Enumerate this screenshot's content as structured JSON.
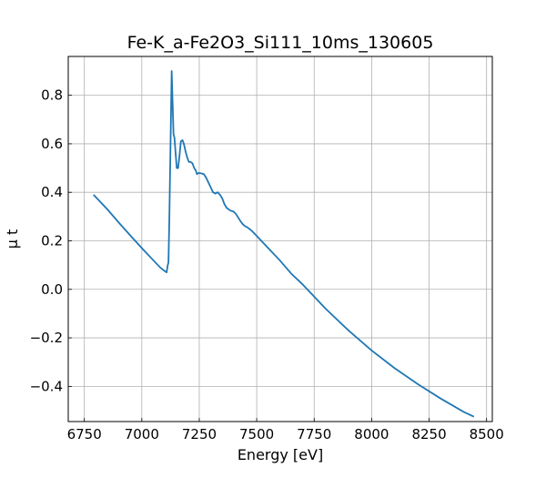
{
  "chart_data": {
    "type": "line",
    "title": "Fe-K_a-Fe2O3_Si111_10ms_130605",
    "xlabel": "Energy [eV]",
    "ylabel": "μ t",
    "xlim": [
      6680,
      8525
    ],
    "ylim": [
      -0.545,
      0.96
    ],
    "xticks": [
      6750,
      7000,
      7250,
      7500,
      7750,
      8000,
      8250,
      8500
    ],
    "yticks": [
      -0.4,
      -0.2,
      0.0,
      0.2,
      0.4,
      0.6,
      0.8
    ],
    "xtick_labels": [
      "6750",
      "7000",
      "7250",
      "7500",
      "7750",
      "8000",
      "8250",
      "8500"
    ],
    "ytick_labels": [
      "−0.4",
      "−0.2",
      "0.0",
      "0.2",
      "0.4",
      "0.6",
      "0.8"
    ],
    "grid": true,
    "line_color": "#1f77b4",
    "series": [
      {
        "x": [
          6790,
          6850,
          6900,
          6950,
          7000,
          7050,
          7080,
          7100,
          7108,
          7113,
          7116,
          7120,
          7125,
          7130,
          7133,
          7138,
          7142,
          7148,
          7152,
          7158,
          7165,
          7170,
          7177,
          7183,
          7190,
          7197,
          7205,
          7212,
          7220,
          7228,
          7235,
          7240,
          7248,
          7258,
          7270,
          7280,
          7290,
          7300,
          7310,
          7320,
          7330,
          7340,
          7350,
          7360,
          7370,
          7385,
          7400,
          7410,
          7420,
          7430,
          7440,
          7450,
          7460,
          7480,
          7500,
          7520,
          7550,
          7600,
          7650,
          7700,
          7750,
          7800,
          7900,
          8000,
          8100,
          8200,
          8300,
          8400,
          8445
        ],
        "y": [
          0.39,
          0.33,
          0.275,
          0.222,
          0.17,
          0.12,
          0.09,
          0.075,
          0.07,
          0.1,
          0.11,
          0.3,
          0.6,
          0.9,
          0.8,
          0.64,
          0.625,
          0.55,
          0.5,
          0.5,
          0.56,
          0.61,
          0.615,
          0.6,
          0.57,
          0.545,
          0.525,
          0.525,
          0.52,
          0.5,
          0.49,
          0.475,
          0.48,
          0.478,
          0.475,
          0.46,
          0.44,
          0.42,
          0.4,
          0.395,
          0.4,
          0.39,
          0.375,
          0.35,
          0.335,
          0.325,
          0.32,
          0.31,
          0.295,
          0.28,
          0.268,
          0.26,
          0.255,
          0.24,
          0.22,
          0.2,
          0.17,
          0.12,
          0.065,
          0.02,
          -0.03,
          -0.08,
          -0.17,
          -0.252,
          -0.325,
          -0.39,
          -0.45,
          -0.505,
          -0.525
        ]
      }
    ]
  }
}
